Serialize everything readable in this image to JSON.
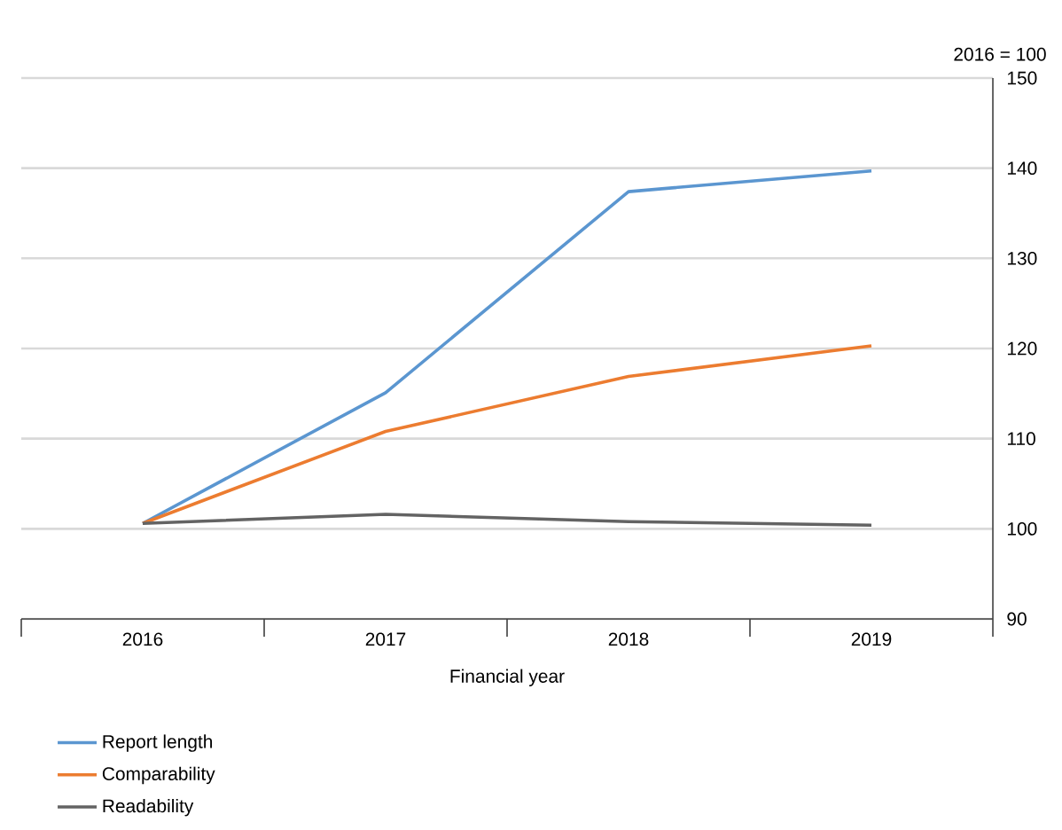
{
  "chart_data": {
    "type": "line",
    "ylabel": "2016 = 100",
    "xlabel": "Financial year",
    "categories": [
      "2016",
      "2017",
      "2018",
      "2019"
    ],
    "series": [
      {
        "name": "Report length",
        "color": "#5b96d0",
        "values": [
          100.6,
          115.1,
          137.4,
          139.7
        ]
      },
      {
        "name": "Comparability",
        "color": "#ec7c30",
        "values": [
          100.6,
          110.8,
          116.9,
          120.3
        ]
      },
      {
        "name": "Readability",
        "color": "#636363",
        "values": [
          100.6,
          101.6,
          100.8,
          100.4
        ]
      }
    ],
    "ylim": [
      90,
      150
    ],
    "yticks": [
      90,
      100,
      110,
      120,
      130,
      140,
      150
    ],
    "grid": "y",
    "legend": "bottom",
    "line_style": "solid"
  }
}
